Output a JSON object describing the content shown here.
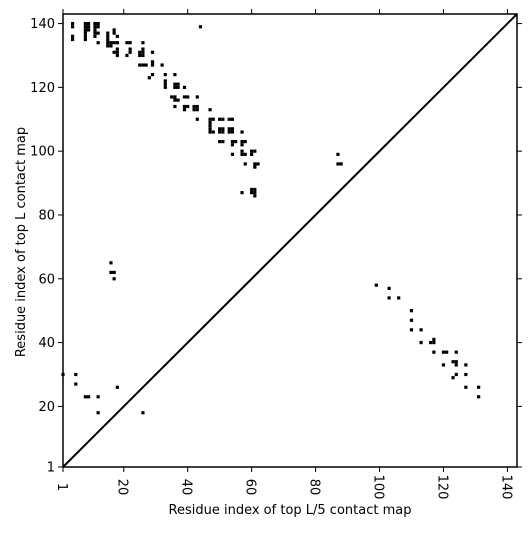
{
  "chart_data": {
    "type": "scatter",
    "title": "",
    "xlabel": "Residue index of top L/5 contact map",
    "ylabel": "Residue index of top L contact map",
    "xlim": [
      1,
      143
    ],
    "ylim": [
      1,
      143
    ],
    "x_ticks": [
      1,
      20,
      40,
      60,
      80,
      100,
      120,
      140
    ],
    "x_tick_labels": [
      "1",
      "20",
      "40",
      "60",
      "80",
      "100",
      "120",
      "140"
    ],
    "y_ticks": [
      1,
      20,
      40,
      60,
      80,
      100,
      120,
      140
    ],
    "y_tick_labels": [
      "1",
      "20",
      "40",
      "60",
      "80",
      "100",
      "120",
      "140"
    ],
    "grid": false,
    "legend": "none",
    "diagonal_line": true,
    "marker_color": "#000000",
    "series": [
      {
        "points": [
          [
            4,
            139
          ],
          [
            4,
            140
          ],
          [
            4,
            136
          ],
          [
            4,
            135
          ],
          [
            8,
            140
          ],
          [
            8,
            139
          ],
          [
            8,
            138
          ],
          [
            8,
            137
          ],
          [
            8,
            136
          ],
          [
            8,
            135
          ],
          [
            9,
            140
          ],
          [
            9,
            139
          ],
          [
            9,
            138
          ],
          [
            11,
            140
          ],
          [
            11,
            139
          ],
          [
            11,
            138
          ],
          [
            11,
            137
          ],
          [
            11,
            136
          ],
          [
            12,
            140
          ],
          [
            12,
            139
          ],
          [
            12,
            137
          ],
          [
            12,
            134
          ],
          [
            15,
            137
          ],
          [
            15,
            136
          ],
          [
            15,
            135
          ],
          [
            15,
            134
          ],
          [
            15,
            133
          ],
          [
            16,
            134
          ],
          [
            16,
            133
          ],
          [
            17,
            138
          ],
          [
            17,
            137
          ],
          [
            17,
            134
          ],
          [
            17,
            131
          ],
          [
            18,
            136
          ],
          [
            18,
            134
          ],
          [
            18,
            132
          ],
          [
            18,
            131
          ],
          [
            18,
            130
          ],
          [
            21,
            134
          ],
          [
            22,
            134
          ],
          [
            22,
            132
          ],
          [
            21,
            130
          ],
          [
            22,
            131
          ],
          [
            25,
            131
          ],
          [
            25,
            130
          ],
          [
            26,
            134
          ],
          [
            26,
            132
          ],
          [
            26,
            131
          ],
          [
            26,
            130
          ],
          [
            25,
            127
          ],
          [
            26,
            127
          ],
          [
            27,
            127
          ],
          [
            29,
            131
          ],
          [
            29,
            128
          ],
          [
            29,
            127
          ],
          [
            29,
            124
          ],
          [
            28,
            123
          ],
          [
            32,
            127
          ],
          [
            33,
            124
          ],
          [
            33,
            122
          ],
          [
            33,
            121
          ],
          [
            33,
            120
          ],
          [
            36,
            124
          ],
          [
            36,
            121
          ],
          [
            36,
            120
          ],
          [
            37,
            121
          ],
          [
            37,
            120
          ],
          [
            35,
            117
          ],
          [
            36,
            117
          ],
          [
            36,
            116
          ],
          [
            37,
            116
          ],
          [
            36,
            114
          ],
          [
            39,
            120
          ],
          [
            40,
            117
          ],
          [
            39,
            117
          ],
          [
            39,
            114
          ],
          [
            40,
            114
          ],
          [
            39,
            113
          ],
          [
            42,
            114
          ],
          [
            43,
            117
          ],
          [
            43,
            114
          ],
          [
            42,
            113
          ],
          [
            43,
            113
          ],
          [
            44,
            139
          ],
          [
            43,
            110
          ],
          [
            47,
            113
          ],
          [
            47,
            110
          ],
          [
            47,
            109
          ],
          [
            47,
            108
          ],
          [
            47,
            107
          ],
          [
            48,
            110
          ],
          [
            48,
            106
          ],
          [
            47,
            106
          ],
          [
            50,
            110
          ],
          [
            51,
            110
          ],
          [
            50,
            106
          ],
          [
            50,
            107
          ],
          [
            51,
            107
          ],
          [
            51,
            106
          ],
          [
            50,
            103
          ],
          [
            51,
            103
          ],
          [
            53,
            110
          ],
          [
            54,
            110
          ],
          [
            53,
            107
          ],
          [
            54,
            107
          ],
          [
            53,
            106
          ],
          [
            54,
            106
          ],
          [
            54,
            103
          ],
          [
            54,
            102
          ],
          [
            55,
            103
          ],
          [
            54,
            99
          ],
          [
            57,
            106
          ],
          [
            57,
            103
          ],
          [
            57,
            102
          ],
          [
            58,
            103
          ],
          [
            57,
            100
          ],
          [
            57,
            99
          ],
          [
            58,
            99
          ],
          [
            60,
            100
          ],
          [
            61,
            100
          ],
          [
            60,
            99
          ],
          [
            58,
            96
          ],
          [
            61,
            96
          ],
          [
            62,
            96
          ],
          [
            61,
            95
          ],
          [
            57,
            87
          ],
          [
            60,
            88
          ],
          [
            60,
            87
          ],
          [
            61,
            88
          ],
          [
            61,
            87
          ],
          [
            61,
            86
          ],
          [
            16,
            65
          ],
          [
            16,
            62
          ],
          [
            17,
            62
          ],
          [
            17,
            60
          ],
          [
            87,
            99
          ],
          [
            87,
            96
          ],
          [
            88,
            96
          ],
          [
            99,
            58
          ],
          [
            103,
            57
          ],
          [
            103,
            54
          ],
          [
            106,
            54
          ],
          [
            110,
            50
          ],
          [
            110,
            47
          ],
          [
            110,
            44
          ],
          [
            113,
            44
          ],
          [
            113,
            40
          ],
          [
            116,
            40
          ],
          [
            117,
            41
          ],
          [
            117,
            40
          ],
          [
            117,
            37
          ],
          [
            120,
            37
          ],
          [
            121,
            37
          ],
          [
            120,
            33
          ],
          [
            123,
            34
          ],
          [
            124,
            34
          ],
          [
            124,
            33
          ],
          [
            124,
            37
          ],
          [
            124,
            30
          ],
          [
            123,
            29
          ],
          [
            127,
            33
          ],
          [
            127,
            30
          ],
          [
            127,
            26
          ],
          [
            131,
            26
          ],
          [
            131,
            23
          ],
          [
            1,
            30
          ],
          [
            5,
            30
          ],
          [
            5,
            27
          ],
          [
            8,
            23
          ],
          [
            9,
            23
          ],
          [
            12,
            23
          ],
          [
            12,
            18
          ],
          [
            18,
            26
          ],
          [
            26,
            18
          ]
        ]
      }
    ]
  }
}
